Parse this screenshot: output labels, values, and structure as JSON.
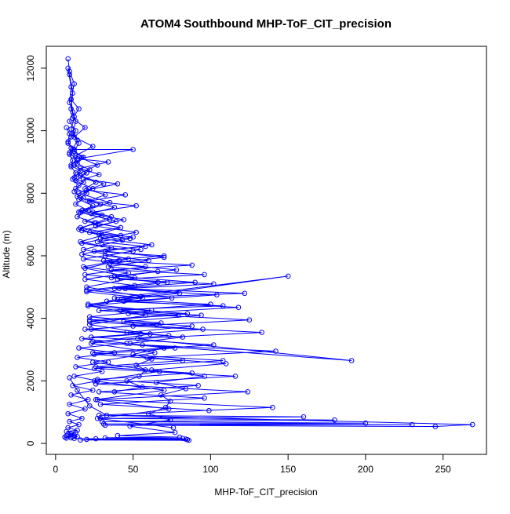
{
  "chart_data": {
    "type": "line",
    "title": "ATOM4 Southbound MHP-ToF_CIT_precision",
    "xlabel": "MHP-ToF_CIT_precision",
    "ylabel": "Altitude (m)",
    "xlim": [
      -6,
      278
    ],
    "ylim": [
      -350,
      12700
    ],
    "xticks": [
      0,
      50,
      100,
      150,
      200,
      250
    ],
    "yticks": [
      0,
      2000,
      4000,
      6000,
      8000,
      10000,
      12000
    ],
    "grid": false,
    "legend": "none",
    "series_color": "#0000ff",
    "marker": "open-circle",
    "series": [
      {
        "x": [
          8,
          9,
          12,
          10,
          11,
          9,
          13,
          10,
          8,
          12,
          9,
          11,
          14,
          10,
          16,
          12,
          18,
          13,
          20,
          15,
          24,
          17,
          30,
          19,
          42,
          22,
          50,
          27,
          58,
          25,
          70,
          31,
          88,
          36,
          96,
          40,
          102,
          45,
          122,
          38,
          150,
          33,
          108,
          28,
          79,
          22,
          65,
          19,
          55,
          17,
          46,
          15,
          38,
          14,
          34,
          13,
          30,
          12,
          27,
          11,
          24,
          10,
          21,
          9,
          19,
          8,
          17,
          9,
          15,
          8,
          14,
          7,
          13,
          8,
          12,
          7,
          11,
          6,
          10,
          7
        ],
        "y": [
          12300,
          11900,
          11500,
          11000,
          10600,
          10300,
          10000,
          9800,
          9600,
          9400,
          9300,
          9200,
          9050,
          8900,
          8700,
          8500,
          8350,
          8150,
          8000,
          7800,
          7600,
          7450,
          7300,
          7100,
          6900,
          6750,
          6600,
          6450,
          6300,
          6150,
          6000,
          5850,
          5700,
          5550,
          5400,
          5250,
          5100,
          4950,
          4800,
          4650,
          5350,
          4550,
          4400,
          4250,
          4100,
          3950,
          3800,
          3650,
          3500,
          3350,
          3200,
          3050,
          2900,
          2750,
          2600,
          2450,
          2300,
          2150,
          2000,
          1850,
          1700,
          1550,
          1400,
          1250,
          1100,
          950,
          800,
          700,
          600,
          500,
          420,
          380,
          340,
          300,
          260,
          240,
          220,
          200,
          180,
          170
        ]
      },
      {
        "x": [
          9,
          11,
          10,
          13,
          11,
          15,
          12,
          18,
          14,
          22,
          16,
          26,
          19,
          32,
          21,
          38,
          23,
          44,
          26,
          52,
          29,
          62,
          32,
          70,
          35,
          78,
          38,
          90,
          41,
          104,
          44,
          118,
          47,
          125,
          50,
          133,
          53,
          191,
          56,
          142,
          59,
          110,
          62,
          96,
          65,
          84,
          68,
          74,
          71,
          60,
          74,
          48,
          77,
          40,
          80,
          32,
          82,
          26,
          84,
          20,
          85,
          16,
          86,
          12,
          14,
          10
        ],
        "y": [
          11800,
          11200,
          10700,
          10300,
          9900,
          9600,
          9350,
          9150,
          8950,
          8750,
          8550,
          8350,
          8150,
          7950,
          7750,
          7550,
          7350,
          7150,
          6950,
          6750,
          6550,
          6350,
          6150,
          5950,
          5750,
          5550,
          5350,
          5150,
          4950,
          4750,
          4550,
          4350,
          4150,
          3950,
          3750,
          3550,
          3350,
          2650,
          3150,
          2950,
          2750,
          2550,
          2350,
          2150,
          1950,
          1750,
          1550,
          1350,
          1150,
          950,
          750,
          550,
          350,
          250,
          200,
          180,
          160,
          150,
          140,
          130,
          120,
          110,
          100,
          160,
          220,
          300
        ]
      },
      {
        "x": [
          8,
          10,
          9,
          12,
          10,
          14,
          11,
          17,
          12,
          20,
          13,
          24,
          14,
          29,
          15,
          35,
          16,
          42,
          17,
          50,
          18,
          58,
          19,
          66,
          20,
          75,
          21,
          85,
          22,
          95,
          23,
          102,
          24,
          108,
          25,
          116,
          26,
          124,
          27,
          140,
          28,
          160,
          29,
          180,
          30,
          200,
          31,
          230,
          32,
          245,
          269,
          33,
          22,
          14,
          9
        ],
        "y": [
          12000,
          11400,
          10900,
          10450,
          10050,
          9700,
          9400,
          9150,
          8900,
          8650,
          8400,
          8150,
          7900,
          7650,
          7400,
          7150,
          6900,
          6650,
          6400,
          6150,
          5900,
          5650,
          5400,
          5150,
          4900,
          4650,
          4400,
          4150,
          3900,
          3650,
          3400,
          3150,
          2900,
          2650,
          2400,
          2150,
          1900,
          1650,
          1400,
          1150,
          900,
          850,
          800,
          750,
          700,
          650,
          620,
          600,
          580,
          540,
          600,
          900,
          1200,
          1700,
          2100
        ]
      },
      {
        "x": [
          7,
          9,
          8,
          10,
          9,
          11,
          10,
          13,
          11,
          15,
          12,
          18,
          13,
          21,
          14,
          25,
          15,
          30,
          16,
          36,
          17,
          41,
          18,
          47,
          19,
          51,
          20,
          56,
          21,
          62,
          22,
          68,
          23,
          73,
          24,
          77,
          25,
          82,
          26,
          88,
          27,
          92,
          28,
          96,
          29,
          99
        ],
        "y": [
          10100,
          9900,
          9650,
          9450,
          9250,
          9050,
          8850,
          8650,
          8450,
          8250,
          8050,
          7850,
          7650,
          7450,
          7250,
          7050,
          6850,
          6650,
          6450,
          6250,
          6050,
          5850,
          5650,
          5450,
          5250,
          5050,
          4850,
          4650,
          4450,
          4250,
          4050,
          3850,
          3650,
          3450,
          3250,
          3050,
          2850,
          2650,
          2450,
          2250,
          2050,
          1850,
          1650,
          1450,
          1250,
          1050
        ]
      },
      {
        "x": [
          12,
          50,
          14,
          34,
          16,
          28,
          18,
          40,
          20,
          45,
          22,
          52,
          24,
          36,
          26,
          42,
          28,
          48,
          30,
          55,
          32,
          60,
          34,
          66,
          36,
          72,
          38,
          80,
          40,
          100,
          42,
          94,
          44,
          88,
          46,
          82,
          48,
          70,
          50,
          62,
          52,
          58,
          54,
          46,
          56,
          38
        ],
        "y": [
          9400,
          9400,
          9100,
          9000,
          8800,
          8600,
          8450,
          8300,
          8100,
          7950,
          7750,
          7600,
          7400,
          7250,
          7050,
          6900,
          6700,
          6550,
          6350,
          6200,
          6000,
          5850,
          5650,
          5500,
          5300,
          5150,
          4950,
          4800,
          4600,
          4450,
          4250,
          4100,
          3900,
          3750,
          3550,
          3400,
          3200,
          3050,
          2850,
          2700,
          2500,
          2350,
          2150,
          2000,
          1800,
          1650
        ]
      },
      {
        "x": [
          10,
          15,
          11,
          19,
          12,
          24,
          13,
          27,
          14,
          31,
          15,
          35,
          16,
          39,
          17,
          43,
          18,
          47,
          19,
          51,
          20,
          55,
          21,
          58,
          22,
          61,
          23,
          64,
          24,
          67,
          25,
          70,
          26,
          73,
          27,
          76
        ],
        "y": [
          11000,
          10700,
          10400,
          10100,
          9800,
          9500,
          9200,
          8900,
          8600,
          8300,
          8000,
          7700,
          7400,
          7100,
          6800,
          6500,
          6200,
          5900,
          5600,
          5300,
          5000,
          4700,
          4400,
          4100,
          3800,
          3500,
          3200,
          2900,
          2600,
          2300,
          2000,
          1700,
          1400,
          1100,
          800,
          500
        ]
      }
    ]
  }
}
